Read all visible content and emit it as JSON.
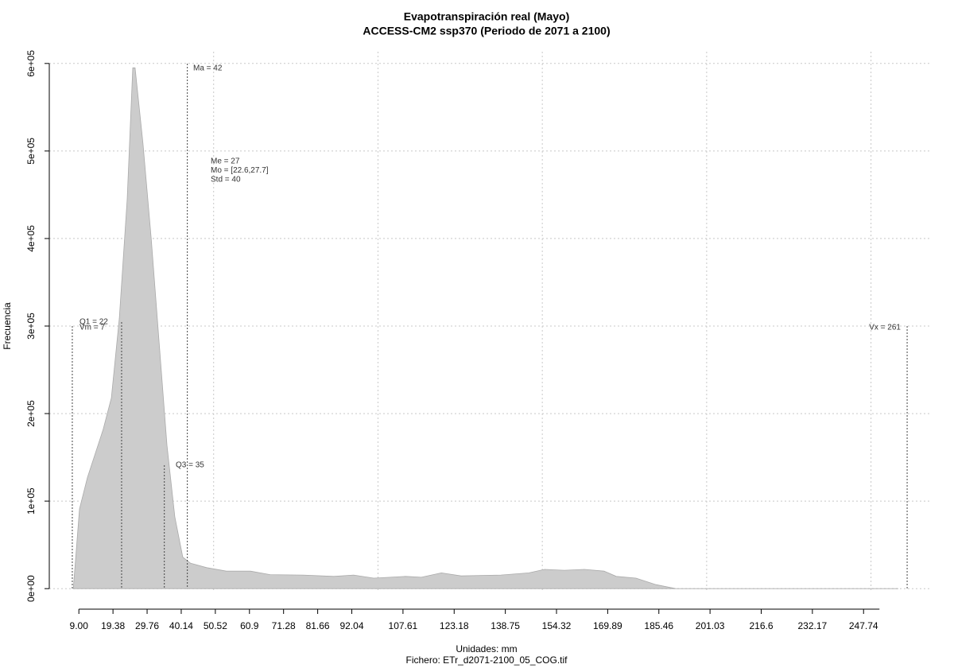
{
  "chart_data": {
    "type": "area",
    "title": "Evapotranspiración real (Mayo)",
    "subtitle": "ACCESS-CM2 ssp370 (Periodo de 2071 a 2100)",
    "x_label": "Unidades: mm",
    "footnote": "Fichero: ETr_d2071-2100_05_COG.tif",
    "y_label": "Frecuencia",
    "color": "#cccccc",
    "x": [
      7.3,
      9.2,
      11.6,
      16.4,
      18.9,
      21.3,
      23.7,
      25.4,
      26.1,
      28.5,
      31,
      33.4,
      35.8,
      38.2,
      40.6,
      43,
      47.9,
      53.9,
      61.2,
      67.2,
      76.9,
      86.6,
      92.6,
      98.7,
      108.4,
      113.2,
      119.3,
      125.3,
      137.4,
      145.9,
      150.7,
      156.7,
      162.8,
      168.8,
      172.5,
      178.5,
      184.6,
      190.6,
      258.3
    ],
    "values": [
      0,
      91000,
      127000,
      182000,
      218000,
      309000,
      445000,
      595000,
      595000,
      509000,
      400000,
      282000,
      164000,
      82000,
      36000,
      29000,
      24000,
      20000,
      20000,
      16000,
      15500,
      14000,
      15500,
      12000,
      14000,
      13000,
      18000,
      14500,
      15500,
      18000,
      22000,
      21000,
      22000,
      20000,
      14000,
      12000,
      4500,
      0,
      0
    ],
    "xlim": [
      0,
      268
    ],
    "ylim": [
      -18000,
      618000
    ],
    "xticks": [
      {
        "value": 9,
        "label": "9.00"
      },
      19.38,
      29.76,
      40.14,
      50.52,
      60.9,
      71.28,
      81.66,
      92.04,
      107.61,
      123.18,
      138.75,
      154.32,
      169.89,
      185.46,
      201.03,
      216.6,
      232.17,
      247.74
    ],
    "xgrid": [
      50,
      100,
      150,
      200,
      250
    ],
    "yticks": [
      {
        "value": 0,
        "label": "0e+00"
      },
      {
        "value": 100000,
        "label": "1e+05"
      },
      {
        "value": 200000,
        "label": "2e+05"
      },
      {
        "value": 300000,
        "label": "3e+05"
      },
      {
        "value": 400000,
        "label": "4e+05"
      },
      {
        "value": 500000,
        "label": "5e+05"
      },
      {
        "value": 600000,
        "label": "6e+05"
      }
    ],
    "grid": true,
    "markers": [
      {
        "label": "Vm = 7",
        "value": 7
      },
      {
        "label": "Q1 = 22",
        "value": 22
      },
      {
        "label": "Q3 = 35",
        "value": 35
      },
      {
        "label": "Ma = 42",
        "value": 42
      },
      {
        "label": "Vx = 261",
        "value": 261
      }
    ],
    "stats": [
      "Me = 27",
      "Mo = [22.6,27.7]",
      "Std = 40"
    ]
  }
}
